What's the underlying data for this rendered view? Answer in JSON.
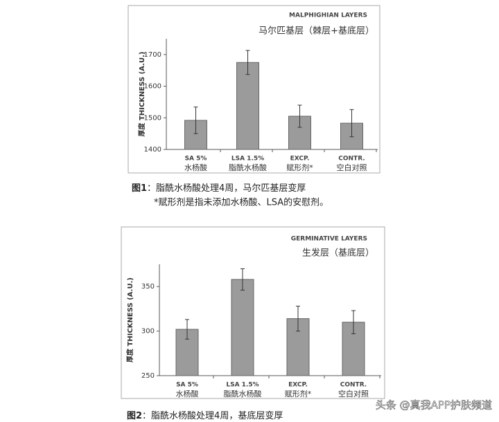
{
  "chart_data": [
    {
      "type": "bar",
      "title": "MALPHIGHIAN LAYERS",
      "subtitle": "马尔匹基层（棘层+基底层）",
      "y_label": "厚度 THICKNESS (A.U.)",
      "categories": [
        "SA 5%",
        "LSA 1.5%",
        "EXCP.",
        "CONTR."
      ],
      "category_subtitles": [
        "水杨酸",
        "脂酰水杨酸",
        "赋形剂*",
        "空白对照"
      ],
      "values": [
        1492,
        1675,
        1505,
        1483
      ],
      "errors": [
        42,
        38,
        35,
        43
      ],
      "color": "#9b9b9b",
      "ylim": [
        1400,
        1750
      ],
      "yticks": [
        1400,
        1500,
        1600,
        1700
      ],
      "caption_label": "图1",
      "caption": "：脂酰水杨酸处理4周，马尔匹基层变厚",
      "note": "*赋形剂是指未添加水杨酸、LSA的安慰剂。"
    },
    {
      "type": "bar",
      "title": "GERMINATIVE LAYERS",
      "subtitle": "生发层（基底层）",
      "y_label": "厚度 THICKNESS (A.U.)",
      "categories": [
        "SA 5%",
        "LSA 1.5%",
        "EXCP.",
        "CONTR."
      ],
      "category_subtitles": [
        "水杨酸",
        "脂酰水杨酸",
        "赋形剂*",
        "空白对照"
      ],
      "values": [
        302,
        358,
        314,
        310
      ],
      "errors": [
        11,
        12,
        14,
        13
      ],
      "color": "#9b9b9b",
      "ylim": [
        250,
        375
      ],
      "yticks": [
        250,
        300,
        350
      ],
      "caption_label": "图2",
      "caption": "：脂酰水杨酸处理4周，基底层变厚"
    }
  ],
  "watermark": "头条 @真我APP护肤频道"
}
